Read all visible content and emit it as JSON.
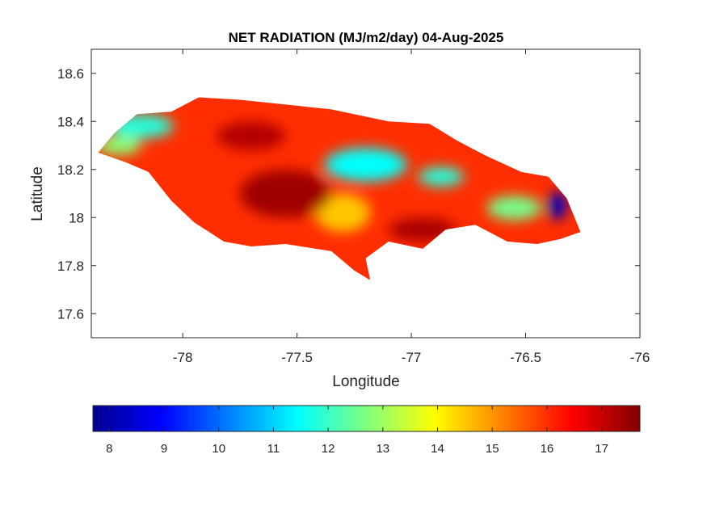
{
  "title": "NET RADIATION (MJ/m2/day) 04-Aug-2025",
  "map": {
    "xlabel": "Longitude",
    "ylabel": "Latitude",
    "xlim": [
      -78.4,
      -76
    ],
    "ylim": [
      17.5,
      18.7
    ],
    "xticks": [
      -78,
      -77.5,
      -77,
      -76.5,
      -76
    ],
    "xtick_labels": [
      "-78",
      "-77.5",
      "-77",
      "-76.5",
      "-76"
    ],
    "yticks": [
      17.6,
      17.8,
      18,
      18.2,
      18.4,
      18.6
    ],
    "ytick_labels": [
      "17.6",
      "17.8",
      "18",
      "18.2",
      "18.4",
      "18.6"
    ],
    "region_outline": [
      [
        -78.37,
        18.27
      ],
      [
        -78.3,
        18.35
      ],
      [
        -78.2,
        18.43
      ],
      [
        -78.05,
        18.44
      ],
      [
        -77.93,
        18.5
      ],
      [
        -77.75,
        18.49
      ],
      [
        -77.55,
        18.47
      ],
      [
        -77.35,
        18.45
      ],
      [
        -77.1,
        18.4
      ],
      [
        -76.92,
        18.39
      ],
      [
        -76.8,
        18.32
      ],
      [
        -76.68,
        18.26
      ],
      [
        -76.52,
        18.19
      ],
      [
        -76.4,
        18.17
      ],
      [
        -76.32,
        18.08
      ],
      [
        -76.26,
        17.94
      ],
      [
        -76.35,
        17.91
      ],
      [
        -76.45,
        17.89
      ],
      [
        -76.58,
        17.9
      ],
      [
        -76.72,
        17.97
      ],
      [
        -76.85,
        17.95
      ],
      [
        -76.95,
        17.87
      ],
      [
        -77.1,
        17.9
      ],
      [
        -77.2,
        17.83
      ],
      [
        -77.18,
        17.74
      ],
      [
        -77.25,
        17.78
      ],
      [
        -77.35,
        17.86
      ],
      [
        -77.55,
        17.89
      ],
      [
        -77.7,
        17.88
      ],
      [
        -77.82,
        17.9
      ],
      [
        -77.95,
        17.98
      ],
      [
        -78.05,
        18.07
      ],
      [
        -78.15,
        18.19
      ],
      [
        -78.25,
        18.23
      ],
      [
        -78.37,
        18.27
      ]
    ],
    "field_blobs": [
      {
        "lon": -77.2,
        "lat": 18.22,
        "value": 11.5,
        "rx": 0.18,
        "ry": 0.07
      },
      {
        "lon": -78.18,
        "lat": 18.38,
        "value": 11.8,
        "rx": 0.14,
        "ry": 0.05
      },
      {
        "lon": -78.28,
        "lat": 18.3,
        "value": 12.8,
        "rx": 0.1,
        "ry": 0.04
      },
      {
        "lon": -76.87,
        "lat": 18.17,
        "value": 11.8,
        "rx": 0.1,
        "ry": 0.04
      },
      {
        "lon": -76.55,
        "lat": 18.04,
        "value": 12.6,
        "rx": 0.12,
        "ry": 0.05
      },
      {
        "lon": -76.36,
        "lat": 18.05,
        "value": 8.2,
        "rx": 0.04,
        "ry": 0.06
      },
      {
        "lon": -77.3,
        "lat": 18.02,
        "value": 14.5,
        "rx": 0.12,
        "ry": 0.08
      },
      {
        "lon": -77.55,
        "lat": 18.1,
        "value": 17.4,
        "rx": 0.2,
        "ry": 0.1
      },
      {
        "lon": -77.7,
        "lat": 18.34,
        "value": 17.2,
        "rx": 0.15,
        "ry": 0.06
      },
      {
        "lon": -76.95,
        "lat": 17.95,
        "value": 17.3,
        "rx": 0.15,
        "ry": 0.05
      }
    ],
    "background_value": 16.0
  },
  "colorbar": {
    "colormap": "jet",
    "range": [
      7.7,
      17.7
    ],
    "ticks": [
      8,
      9,
      10,
      11,
      12,
      13,
      14,
      15,
      16,
      17
    ],
    "tick_labels": [
      "8",
      "9",
      "10",
      "11",
      "12",
      "13",
      "14",
      "15",
      "16",
      "17"
    ]
  },
  "colors": {
    "axes_edge": "#262626",
    "background": "#ffffff"
  }
}
